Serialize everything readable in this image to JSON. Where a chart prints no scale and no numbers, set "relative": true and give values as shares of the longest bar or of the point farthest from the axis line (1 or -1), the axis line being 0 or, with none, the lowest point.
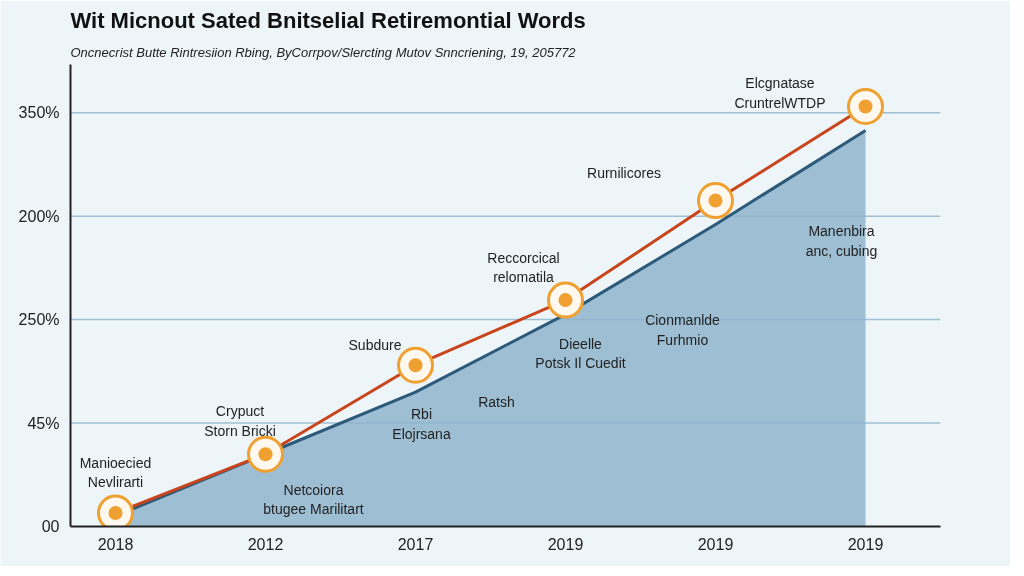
{
  "chart_data": {
    "type": "area",
    "title": "Wit Micnout Sated Bnitselial Retiremontial Words",
    "subtitle": "Oncnecrist Butte Rintresiion Rbing, ByCorrpov/Slercting Mutov Snncriening, 19, 205772",
    "categories": [
      "2018",
      "2012",
      "2017",
      "2019",
      "2019",
      "2019"
    ],
    "relative": true,
    "ref_lines": [
      {
        "axis": "y",
        "value": 0.2463,
        "color": "#9cc0d4"
      },
      {
        "axis": "y",
        "value": 0.4926,
        "color": "#9cc0d4"
      },
      {
        "axis": "y",
        "value": 0.7389,
        "color": "#9cc0d4"
      },
      {
        "axis": "y",
        "value": 0.9852,
        "color": "#9cc0d4"
      }
    ],
    "series": [
      {
        "color": "#8fb4cc",
        "values": [
          0.025,
          0.172,
          0.32,
          0.505,
          0.719,
          0.943
        ]
      },
      {
        "type": "line",
        "color": "#c8441c",
        "marker": "circle",
        "values": [
          0.032,
          0.172,
          0.384,
          0.539,
          0.776,
          1
        ]
      }
    ],
    "annotations": [
      "00",
      "45%",
      "250%",
      "200%",
      "350%",
      "Manioecied\nNevlirarti",
      "Crypuct\nStorn Bricki",
      "Netcoiora\nbtugee Marilitart",
      "Subdure",
      "Rbi\nElojrsana",
      "Ratsh",
      "Reccorcical\nrelomatila",
      "Dieelle\nPotsk Il Cuedit",
      "Cionmanlde\nFurhmio",
      "Rurnilicores",
      "Manenbira\nanc, cubing",
      "Elcgnatase\nCruntrelWTDP"
    ]
  }
}
